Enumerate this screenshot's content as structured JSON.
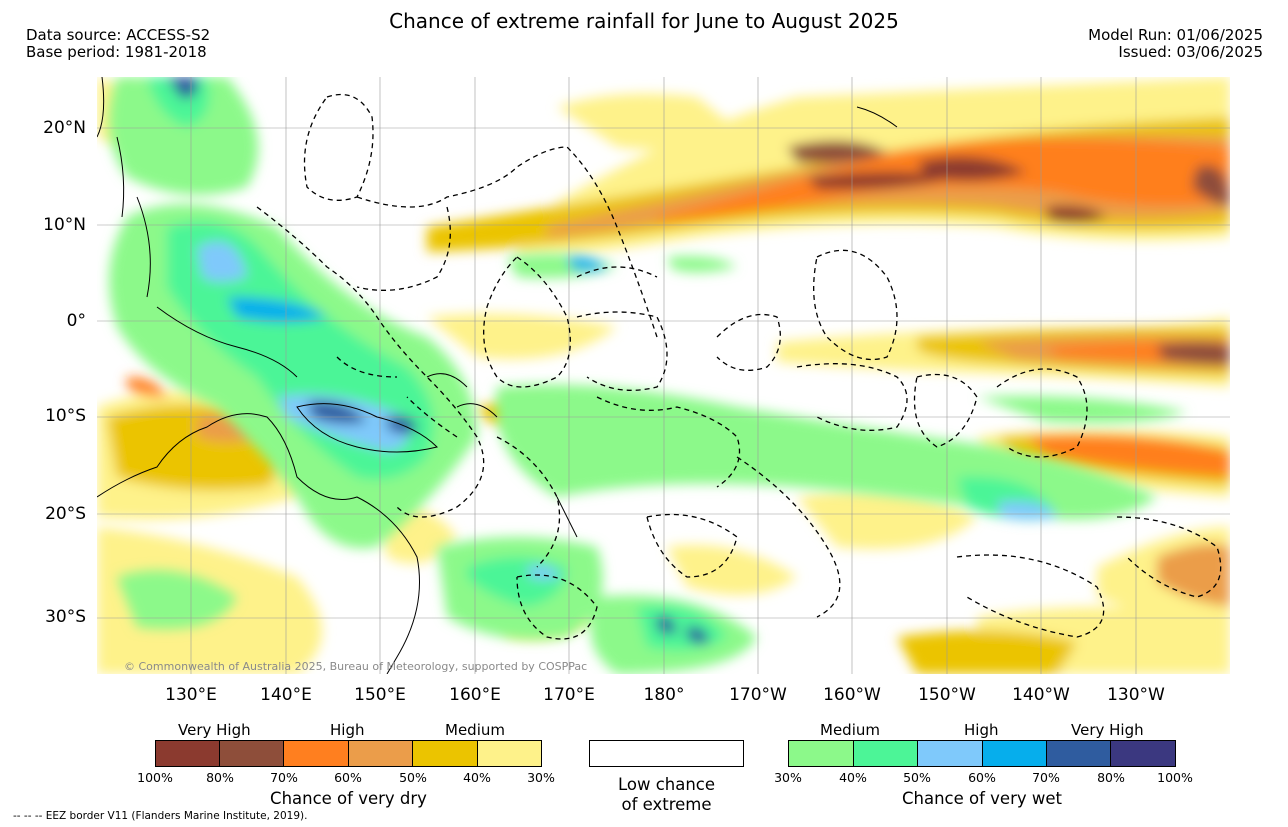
{
  "title": "Chance of extreme rainfall for June to August 2025",
  "header_left": {
    "data_source": "Data source: ACCESS-S2",
    "base_period": "Base period: 1981-2018"
  },
  "header_right": {
    "model_run": "Model Run: 01/06/2025",
    "issued": "Issued: 03/06/2025"
  },
  "map": {
    "region": "Western and Central Pacific",
    "lon_range": [
      120,
      240
    ],
    "lat_range": [
      -37,
      25
    ],
    "lat_labels": [
      "20°N",
      "10°N",
      "0°",
      "10°S",
      "20°S",
      "30°S"
    ],
    "lon_labels": [
      "130°E",
      "140°E",
      "150°E",
      "160°E",
      "170°E",
      "180°",
      "170°W",
      "160°W",
      "150°W",
      "140°W",
      "130°W"
    ],
    "copyright": "© Commonwealth of Australia 2025, Bureau of Meteorology, supported by COSPPac"
  },
  "legend": {
    "dry": {
      "categories": [
        "Very High",
        "High",
        "Medium"
      ],
      "colors": [
        "#8b3a2f",
        "#8e4e3a",
        "#ff7f1f",
        "#eb9d4a",
        "#ebc400",
        "#fef28a"
      ],
      "ticks": [
        "100%",
        "80%",
        "70%",
        "60%",
        "50%",
        "40%",
        "30%"
      ],
      "title": "Chance of very dry"
    },
    "low": {
      "line1": "Low chance",
      "line2": "of extreme",
      "color": "#ffffff"
    },
    "wet": {
      "categories": [
        "Medium",
        "High",
        "Very High"
      ],
      "colors": [
        "#8cf98a",
        "#4cf597",
        "#7fc9fb",
        "#06aeec",
        "#2f5c9f",
        "#3b3880"
      ],
      "ticks": [
        "30%",
        "40%",
        "50%",
        "60%",
        "70%",
        "80%",
        "100%"
      ],
      "title": "Chance of very wet"
    }
  },
  "footnote": "-- -- -- EEZ border V11 (Flanders Marine Institute, 2019)."
}
